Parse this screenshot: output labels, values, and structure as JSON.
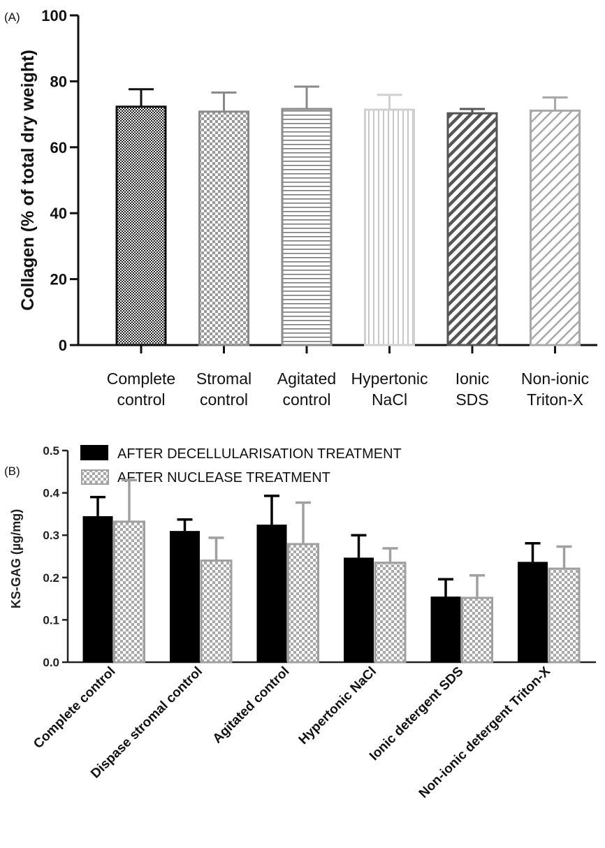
{
  "chart_data": [
    {
      "panel_label": "(A)",
      "type": "bar",
      "ylabel": "Collagen (% of total dry weight)",
      "ylim": [
        0,
        100
      ],
      "yticks": [
        "0",
        "20",
        "40",
        "60",
        "80",
        "100"
      ],
      "categories": [
        [
          "Complete",
          "control"
        ],
        [
          "Stromal",
          "control"
        ],
        [
          "Agitated",
          "control"
        ],
        [
          "Hypertonic",
          "NaCl"
        ],
        [
          "Ionic",
          "SDS"
        ],
        [
          "Non-ionic",
          "Triton-X"
        ]
      ],
      "values": [
        72.3,
        70.8,
        71.6,
        71.4,
        70.3,
        71.1
      ],
      "errors": [
        5.3,
        5.8,
        6.8,
        4.5,
        1.3,
        4.0
      ],
      "bar_styles": [
        {
          "pattern": "checker-dark",
          "outline": "#111111"
        },
        {
          "pattern": "checker-light",
          "outline": "#8a8a8a"
        },
        {
          "pattern": "horizontal",
          "outline": "#8a8a8a"
        },
        {
          "pattern": "vertical",
          "outline": "#d0d0d0"
        },
        {
          "pattern": "diagonal-dark",
          "outline": "#555555"
        },
        {
          "pattern": "diagonal-light",
          "outline": "#a8a8a8"
        }
      ]
    },
    {
      "panel_label": "(B)",
      "type": "bar",
      "ylabel": "KS-GAG (µg/mg)",
      "ylim": [
        0,
        0.5
      ],
      "yticks": [
        "0.0",
        "0.1",
        "0.2",
        "0.3",
        "0.4",
        "0.5"
      ],
      "categories": [
        "Complete control",
        "Dispase stromal control",
        "Agitated control",
        "Hypertonic NaCl",
        "Ionic detergent SDS",
        "Non-ionic detergent Triton-X"
      ],
      "legend_position": "top",
      "series": [
        {
          "name": "AFTER DECELLULARISATION TREATMENT",
          "color": "#000000",
          "pattern": "solid",
          "values": [
            0.345,
            0.31,
            0.325,
            0.247,
            0.155,
            0.237
          ],
          "errors": [
            0.045,
            0.027,
            0.068,
            0.053,
            0.041,
            0.044
          ]
        },
        {
          "name": "AFTER NUCLEASE TREATMENT",
          "color": "#a0a0a0",
          "pattern": "checker",
          "values": [
            0.332,
            0.24,
            0.279,
            0.235,
            0.152,
            0.221
          ],
          "errors": [
            0.098,
            0.054,
            0.098,
            0.034,
            0.053,
            0.052
          ]
        }
      ]
    }
  ]
}
